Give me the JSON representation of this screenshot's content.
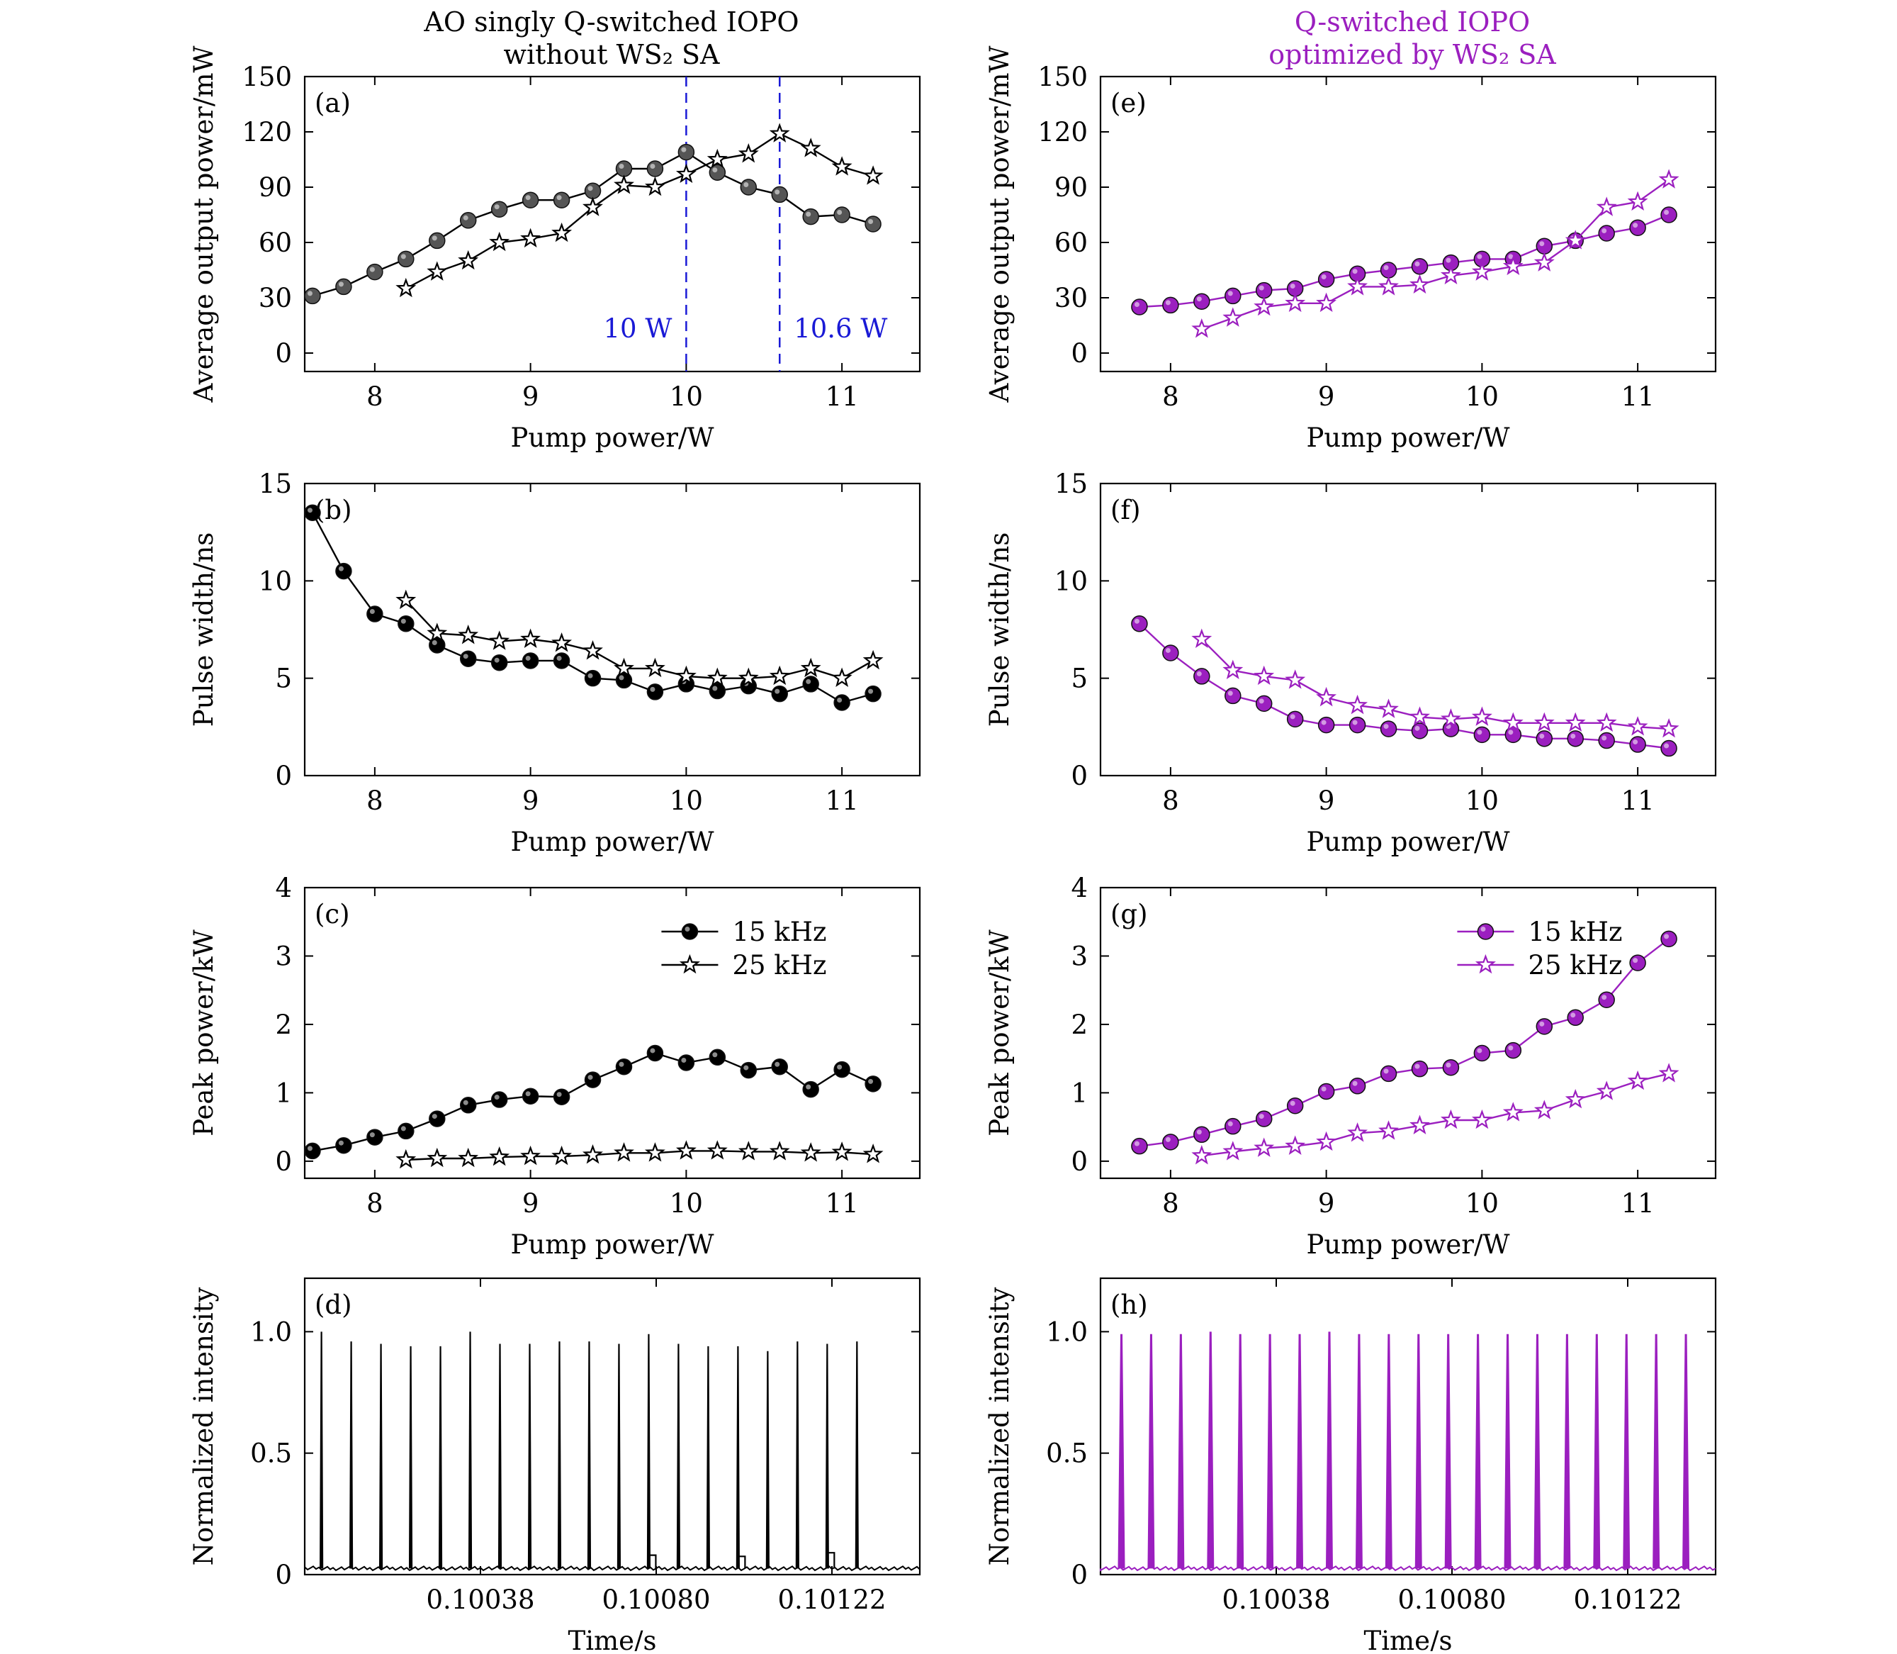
{
  "titles": {
    "left": [
      "AO singly Q-switched IOPO",
      "without WS₂ SA"
    ],
    "right": [
      "Q-switched IOPO",
      "optimized by WS₂ SA"
    ],
    "right_color": "#9b1fbf"
  },
  "colors": {
    "black_line": "#000000",
    "gray_marker": "#555555",
    "purple": "#9b1fbf",
    "vline": "#1a1ad6"
  },
  "legend": {
    "s15": "15 kHz",
    "s25": "25 kHz"
  },
  "chart_data": [
    {
      "id": "a",
      "panel_label": "(a)",
      "type": "line",
      "xlabel": "Pump power/W",
      "ylabel": "Average output power/mW",
      "xlim": [
        7.55,
        11.5
      ],
      "ylim": [
        -10,
        150
      ],
      "xticks": [
        8,
        9,
        10,
        11
      ],
      "yticks": [
        0,
        30,
        60,
        90,
        120,
        150
      ],
      "series": [
        {
          "name": "15 kHz",
          "marker": "circle",
          "color": "#555555",
          "x": [
            7.6,
            7.8,
            8.0,
            8.2,
            8.4,
            8.6,
            8.8,
            9.0,
            9.2,
            9.4,
            9.6,
            9.8,
            10.0,
            10.2,
            10.4,
            10.6,
            10.8,
            11.0,
            11.2
          ],
          "y": [
            31,
            36,
            44,
            51,
            61,
            72,
            78,
            83,
            83,
            88,
            100,
            100,
            109,
            98,
            90,
            86,
            74,
            75,
            70
          ]
        },
        {
          "name": "25 kHz",
          "marker": "star",
          "color": "#000000",
          "x": [
            8.2,
            8.4,
            8.6,
            8.8,
            9.0,
            9.2,
            9.4,
            9.6,
            9.8,
            10.0,
            10.2,
            10.4,
            10.6,
            10.8,
            11.0,
            11.2
          ],
          "y": [
            35,
            44,
            50,
            60,
            62,
            65,
            79,
            91,
            90,
            97,
            105,
            108,
            119,
            111,
            101,
            96
          ]
        }
      ],
      "vlines": [
        {
          "x": 10.0,
          "label": "10 W"
        },
        {
          "x": 10.6,
          "label": "10.6 W"
        }
      ]
    },
    {
      "id": "b",
      "panel_label": "(b)",
      "type": "line",
      "xlabel": "Pump power/W",
      "ylabel": "Pulse width/ns",
      "xlim": [
        7.55,
        11.5
      ],
      "ylim": [
        0,
        15
      ],
      "xticks": [
        8,
        9,
        10,
        11
      ],
      "yticks": [
        0,
        5,
        10,
        15
      ],
      "series": [
        {
          "name": "15 kHz",
          "marker": "circle",
          "color": "#000000",
          "x": [
            7.6,
            7.8,
            8.0,
            8.2,
            8.4,
            8.6,
            8.8,
            9.0,
            9.2,
            9.4,
            9.6,
            9.8,
            10.0,
            10.2,
            10.4,
            10.6,
            10.8,
            11.0,
            11.2
          ],
          "y": [
            13.5,
            10.5,
            8.3,
            7.8,
            6.7,
            6.0,
            5.8,
            5.9,
            5.9,
            5.0,
            4.9,
            4.3,
            4.7,
            4.35,
            4.6,
            4.2,
            4.7,
            3.75,
            4.2
          ]
        },
        {
          "name": "25 kHz",
          "marker": "star",
          "color": "#000000",
          "x": [
            8.2,
            8.4,
            8.6,
            8.8,
            9.0,
            9.2,
            9.4,
            9.6,
            9.8,
            10.0,
            10.2,
            10.4,
            10.6,
            10.8,
            11.0,
            11.2
          ],
          "y": [
            9.0,
            7.3,
            7.2,
            6.9,
            7.0,
            6.8,
            6.4,
            5.5,
            5.5,
            5.1,
            5.0,
            5.0,
            5.1,
            5.5,
            5.0,
            5.9
          ]
        }
      ]
    },
    {
      "id": "c",
      "panel_label": "(c)",
      "type": "line",
      "xlabel": "Pump power/W",
      "ylabel": "Peak power/kW",
      "xlim": [
        7.55,
        11.5
      ],
      "ylim": [
        -0.25,
        4
      ],
      "xticks": [
        8,
        9,
        10,
        11
      ],
      "yticks": [
        0,
        1,
        2,
        3,
        4
      ],
      "legend": true,
      "series": [
        {
          "name": "15 kHz",
          "marker": "circle",
          "color": "#000000",
          "x": [
            7.6,
            7.8,
            8.0,
            8.2,
            8.4,
            8.6,
            8.8,
            9.0,
            9.2,
            9.4,
            9.6,
            9.8,
            10.0,
            10.2,
            10.4,
            10.6,
            10.8,
            11.0,
            11.2
          ],
          "y": [
            0.15,
            0.23,
            0.35,
            0.44,
            0.62,
            0.82,
            0.9,
            0.95,
            0.94,
            1.19,
            1.38,
            1.58,
            1.44,
            1.52,
            1.33,
            1.38,
            1.05,
            1.34,
            1.13
          ]
        },
        {
          "name": "25 kHz",
          "marker": "star",
          "color": "#000000",
          "x": [
            8.2,
            8.4,
            8.6,
            8.8,
            9.0,
            9.2,
            9.4,
            9.6,
            9.8,
            10.0,
            10.2,
            10.4,
            10.6,
            10.8,
            11.0,
            11.2
          ],
          "y": [
            0.02,
            0.04,
            0.04,
            0.06,
            0.07,
            0.07,
            0.09,
            0.12,
            0.12,
            0.15,
            0.15,
            0.14,
            0.14,
            0.12,
            0.13,
            0.1
          ]
        }
      ]
    },
    {
      "id": "d",
      "panel_label": "(d)",
      "type": "line",
      "xlabel": "Time/s",
      "ylabel": "Normalized intensity",
      "xlim": [
        0.09996,
        0.10143
      ],
      "ylim": [
        0,
        1.22
      ],
      "xticks": [
        0.10038,
        0.1008,
        0.10122
      ],
      "xticklabels": [
        "0.10038",
        "0.10080",
        "0.10122"
      ],
      "yticks": [
        0,
        0.5,
        1.0
      ],
      "yticklabels": [
        "0",
        "0.5",
        "1.0"
      ],
      "pulses": {
        "t0": 0.1,
        "period": 7.11e-05,
        "amplitudes": [
          1.0,
          0.96,
          0.95,
          0.94,
          0.94,
          1.0,
          0.95,
          0.95,
          0.96,
          0.96,
          0.95,
          0.99,
          0.95,
          0.94,
          0.94,
          0.92,
          0.96,
          0.95,
          0.96
        ],
        "baseline": 0.025,
        "shoulders": [
          [
            11,
            0.08
          ],
          [
            14,
            0.075
          ],
          [
            17,
            0.09
          ]
        ]
      }
    },
    {
      "id": "e",
      "panel_label": "(e)",
      "type": "line",
      "xlabel": "Pump power/W",
      "ylabel": "Average output power/mW",
      "xlim": [
        7.55,
        11.5
      ],
      "ylim": [
        -10,
        150
      ],
      "xticks": [
        8,
        9,
        10,
        11
      ],
      "yticks": [
        0,
        30,
        60,
        90,
        120,
        150
      ],
      "series": [
        {
          "name": "15 kHz",
          "marker": "circle",
          "color": "#9b1fbf",
          "x": [
            7.8,
            8.0,
            8.2,
            8.4,
            8.6,
            8.8,
            9.0,
            9.2,
            9.4,
            9.6,
            9.8,
            10.0,
            10.2,
            10.4,
            10.6,
            10.8,
            11.0,
            11.2
          ],
          "y": [
            25,
            26,
            28,
            31,
            34,
            35,
            40,
            43,
            45,
            47,
            49,
            51,
            51,
            58,
            61,
            65,
            68,
            75
          ]
        },
        {
          "name": "25 kHz",
          "marker": "star",
          "color": "#9b1fbf",
          "x": [
            8.2,
            8.4,
            8.6,
            8.8,
            9.0,
            9.2,
            9.4,
            9.6,
            9.8,
            10.0,
            10.2,
            10.4,
            10.6,
            10.8,
            11.0,
            11.2
          ],
          "y": [
            13,
            19,
            25,
            27,
            27,
            36,
            36,
            37,
            42,
            44,
            47,
            49,
            61,
            79,
            82,
            94
          ]
        }
      ]
    },
    {
      "id": "f",
      "panel_label": "(f)",
      "type": "line",
      "xlabel": "Pump power/W",
      "ylabel": "Pulse width/ns",
      "xlim": [
        7.55,
        11.5
      ],
      "ylim": [
        0,
        15
      ],
      "xticks": [
        8,
        9,
        10,
        11
      ],
      "yticks": [
        0,
        5,
        10,
        15
      ],
      "series": [
        {
          "name": "15 kHz",
          "marker": "circle",
          "color": "#9b1fbf",
          "x": [
            7.8,
            8.0,
            8.2,
            8.4,
            8.6,
            8.8,
            9.0,
            9.2,
            9.4,
            9.6,
            9.8,
            10.0,
            10.2,
            10.4,
            10.6,
            10.8,
            11.0,
            11.2
          ],
          "y": [
            7.8,
            6.3,
            5.1,
            4.1,
            3.7,
            2.9,
            2.6,
            2.6,
            2.4,
            2.3,
            2.4,
            2.1,
            2.1,
            1.9,
            1.9,
            1.8,
            1.6,
            1.4
          ]
        },
        {
          "name": "25 kHz",
          "marker": "star",
          "color": "#9b1fbf",
          "x": [
            8.2,
            8.4,
            8.6,
            8.8,
            9.0,
            9.2,
            9.4,
            9.6,
            9.8,
            10.0,
            10.2,
            10.4,
            10.6,
            10.8,
            11.0,
            11.2
          ],
          "y": [
            7.0,
            5.4,
            5.1,
            4.9,
            4.0,
            3.6,
            3.4,
            3.0,
            2.9,
            3.0,
            2.7,
            2.7,
            2.7,
            2.7,
            2.5,
            2.4
          ]
        }
      ]
    },
    {
      "id": "g",
      "panel_label": "(g)",
      "type": "line",
      "xlabel": "Pump power/W",
      "ylabel": "Peak power/kW",
      "xlim": [
        7.55,
        11.5
      ],
      "ylim": [
        -0.25,
        4
      ],
      "xticks": [
        8,
        9,
        10,
        11
      ],
      "yticks": [
        0,
        1,
        2,
        3,
        4
      ],
      "legend": true,
      "series": [
        {
          "name": "15 kHz",
          "marker": "circle",
          "color": "#9b1fbf",
          "x": [
            7.8,
            8.0,
            8.2,
            8.4,
            8.6,
            8.8,
            9.0,
            9.2,
            9.4,
            9.6,
            9.8,
            10.0,
            10.2,
            10.4,
            10.6,
            10.8,
            11.0,
            11.2
          ],
          "y": [
            0.22,
            0.28,
            0.39,
            0.51,
            0.62,
            0.81,
            1.02,
            1.1,
            1.28,
            1.35,
            1.37,
            1.58,
            1.62,
            1.97,
            2.1,
            2.36,
            2.9,
            3.25
          ]
        },
        {
          "name": "25 kHz",
          "marker": "star",
          "color": "#9b1fbf",
          "x": [
            8.2,
            8.4,
            8.6,
            8.8,
            9.0,
            9.2,
            9.4,
            9.6,
            9.8,
            10.0,
            10.2,
            10.4,
            10.6,
            10.8,
            11.0,
            11.2
          ],
          "y": [
            0.08,
            0.14,
            0.19,
            0.22,
            0.28,
            0.41,
            0.44,
            0.52,
            0.6,
            0.6,
            0.71,
            0.74,
            0.9,
            1.02,
            1.17,
            1.28
          ]
        }
      ]
    },
    {
      "id": "h",
      "panel_label": "(h)",
      "type": "line",
      "xlabel": "Time/s",
      "ylabel": "Normalized intensity",
      "xlim": [
        0.09996,
        0.10143
      ],
      "ylim": [
        0,
        1.22
      ],
      "xticks": [
        0.10038,
        0.1008,
        0.10122
      ],
      "xticklabels": [
        "0.10038",
        "0.10080",
        "0.10122"
      ],
      "yticks": [
        0,
        0.5,
        1.0
      ],
      "yticklabels": [
        "0",
        "0.5",
        "1.0"
      ],
      "pulses": {
        "t0": 0.10001,
        "period": 7.1e-05,
        "amplitudes": [
          0.99,
          0.99,
          0.99,
          1.0,
          0.99,
          0.99,
          0.99,
          1.0,
          0.99,
          0.99,
          0.99,
          0.99,
          0.99,
          0.99,
          0.99,
          0.99,
          0.99,
          0.99,
          0.99,
          0.99
        ],
        "baseline": 0.025,
        "shoulders": []
      }
    }
  ]
}
